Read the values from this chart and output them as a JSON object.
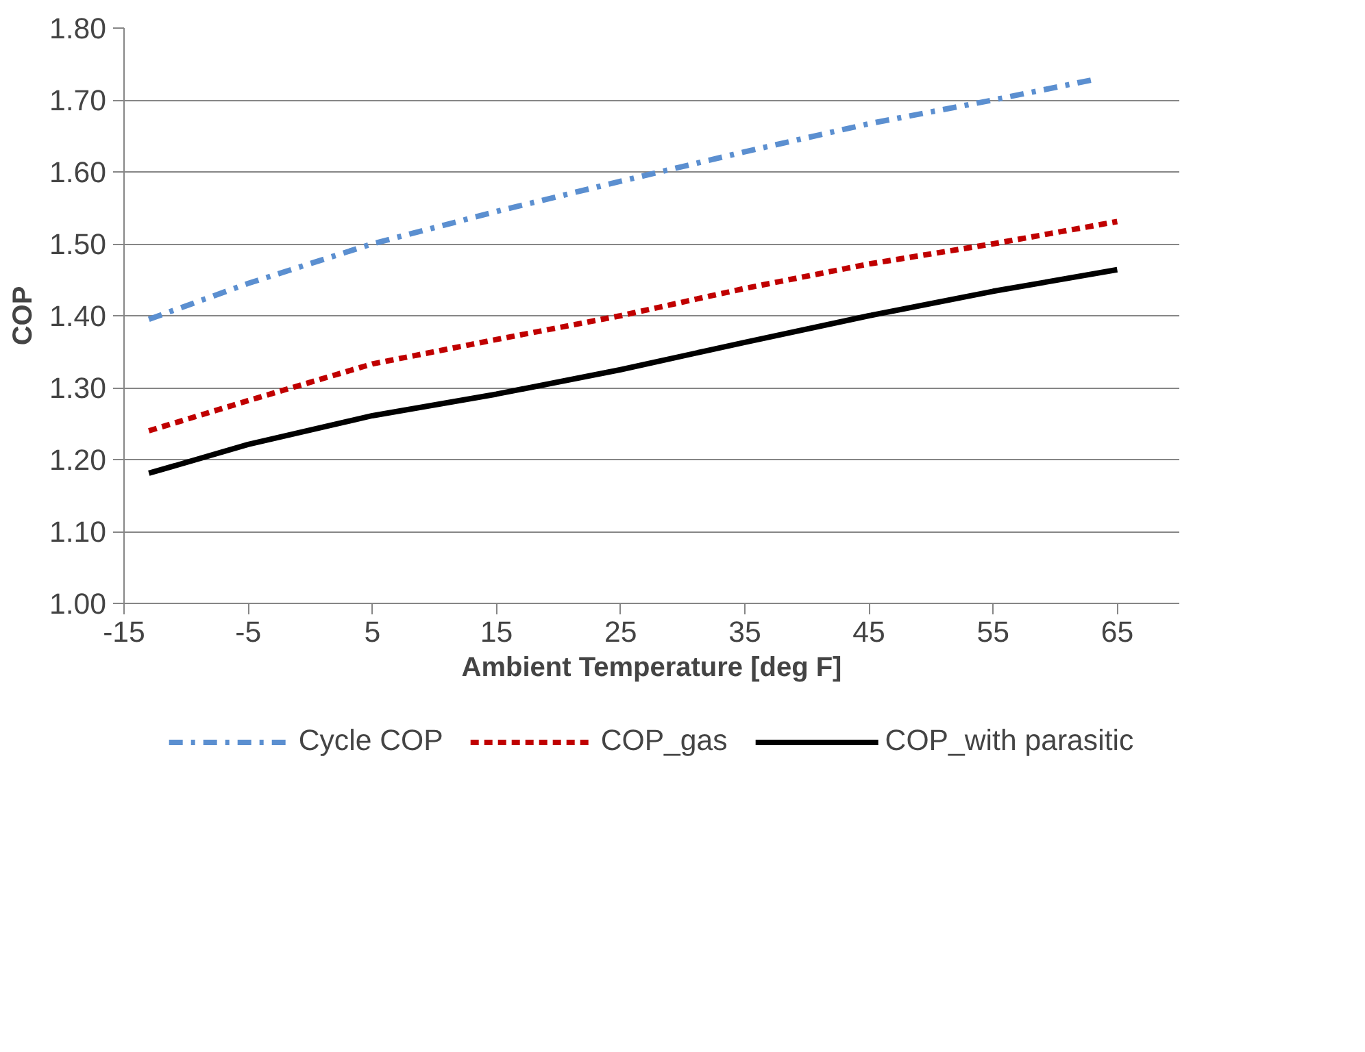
{
  "chart_data": {
    "type": "line",
    "xlabel": "Ambient Temperature [deg F]",
    "ylabel": "COP",
    "xlim": [
      -15,
      70
    ],
    "xticks": [
      {
        "value": -15,
        "label": "-15"
      },
      {
        "value": -5,
        "label": "-5"
      },
      5,
      15,
      25,
      35,
      45,
      55,
      65
    ],
    "ylim": [
      1.0,
      1.8
    ],
    "yticks": [
      {
        "value": 1.0,
        "label": "1.00"
      },
      {
        "value": 1.1,
        "label": "1.10"
      },
      {
        "value": 1.2,
        "label": "1.20"
      },
      {
        "value": 1.3,
        "label": "1.30"
      },
      {
        "value": 1.4,
        "label": "1.40"
      },
      {
        "value": 1.5,
        "label": "1.50"
      },
      {
        "value": 1.6,
        "label": "1.60"
      },
      {
        "value": 1.7,
        "label": "1.70"
      },
      {
        "value": 1.8,
        "label": "1.80"
      }
    ],
    "grid": "y",
    "legend": "bottom",
    "marker": "none",
    "series": [
      {
        "name": "Cycle COP",
        "color": "#5b8fd0",
        "line_style": "dashdot",
        "x": [
          -13,
          -5,
          5,
          15,
          25,
          35,
          45,
          55,
          63
        ],
        "values": [
          1.395,
          1.445,
          1.5,
          1.545,
          1.587,
          1.628,
          1.667,
          1.7,
          1.728
        ]
      },
      {
        "name": "COP_gas",
        "color": "#c00000",
        "line_style": "dashed",
        "x": [
          -13,
          -5,
          5,
          15,
          25,
          35,
          45,
          55,
          65
        ],
        "values": [
          1.24,
          1.282,
          1.333,
          1.367,
          1.4,
          1.438,
          1.472,
          1.5,
          1.531
        ]
      },
      {
        "name": "COP_with parasitic",
        "color": "#000000",
        "line_style": "solid",
        "x": [
          -13,
          -5,
          5,
          15,
          25,
          35,
          45,
          55,
          65
        ],
        "values": [
          1.181,
          1.221,
          1.261,
          1.291,
          1.325,
          1.363,
          1.4,
          1.434,
          1.464
        ]
      }
    ]
  }
}
